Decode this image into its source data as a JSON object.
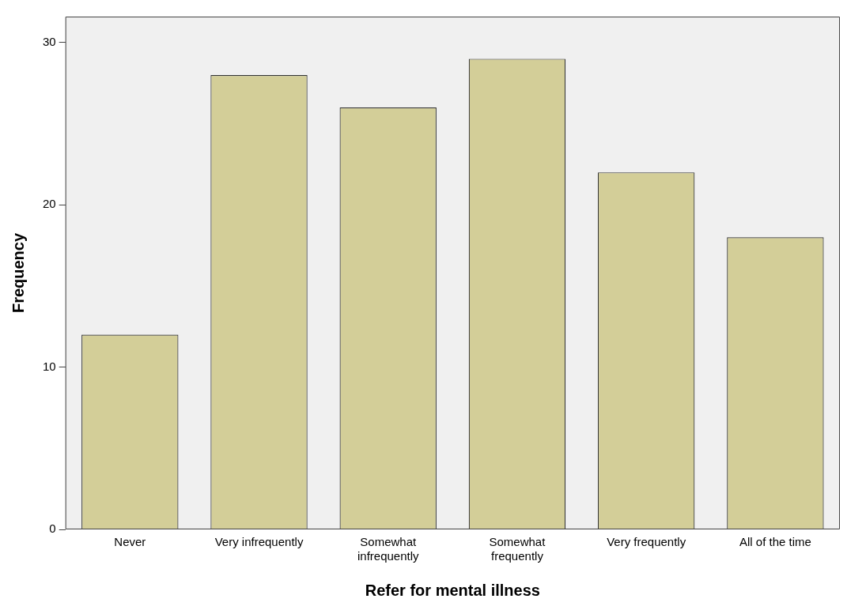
{
  "chart_data": {
    "type": "bar",
    "xlabel": "Refer for mental illness",
    "ylabel": "Frequency",
    "categories": [
      "Never",
      "Very infrequently",
      "Somewhat infrequently",
      "Somewhat frequently",
      "Very frequently",
      "All of the time"
    ],
    "values": [
      12,
      28,
      26,
      29,
      22,
      18
    ],
    "color": "#d3ce98",
    "ylim": [
      0,
      31.6
    ],
    "yticks": [
      0,
      10,
      20,
      30
    ],
    "grid": false,
    "legend": false
  }
}
